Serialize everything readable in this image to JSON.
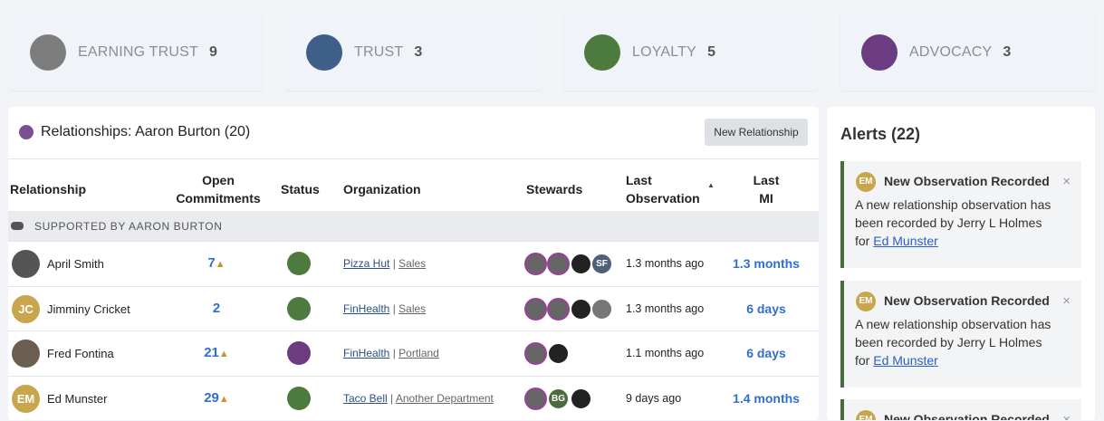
{
  "stats": [
    {
      "label": "EARNING TRUST",
      "count": 9
    },
    {
      "label": "TRUST",
      "count": 3
    },
    {
      "label": "LOYALTY",
      "count": 5
    },
    {
      "label": "ADVOCACY",
      "count": 3
    }
  ],
  "relationships": {
    "title": "Relationships: Aaron Burton (20)",
    "button": "New Relationship",
    "columns": [
      "Relationship",
      "Open Commitments",
      "Status",
      "Organization",
      "Stewards",
      "Last Observation",
      "Last MI"
    ],
    "group": "SUPPORTED BY AARON BURTON",
    "rows": [
      {
        "name": "April Smith",
        "commitments": 7,
        "organization": "Pizza Hut",
        "department": "Sales",
        "steward_initials": "SF",
        "last_observation": "1.3 months ago",
        "last_mi": "1.3 months"
      },
      {
        "initials": "JC",
        "name": "Jimminy Cricket",
        "commitments": 2,
        "organization": "FinHealth",
        "department": "Sales",
        "last_observation": "1.3 months ago",
        "last_mi": "6 days"
      },
      {
        "name": "Fred Fontina",
        "commitments": 21,
        "organization": "FinHealth",
        "department": "Portland",
        "last_observation": "1.1 months ago",
        "last_mi": "6 days"
      },
      {
        "initials": "EM",
        "name": "Ed Munster",
        "commitments": 29,
        "organization": "Taco Bell",
        "department": "Another Department",
        "steward_initials": "BG",
        "last_observation": "9 days ago",
        "last_mi": "1.4 months"
      }
    ]
  },
  "alerts": {
    "title": "Alerts (22)",
    "items": [
      {
        "initials": "EM",
        "title": "New Observation Recorded",
        "body": "A new relationship observation has been recorded by Jerry L Holmes for",
        "link": "Ed Munster"
      },
      {
        "initials": "EM",
        "title": "New Observation Recorded",
        "body": "A new relationship observation has been recorded by Jerry L Holmes for",
        "link": "Ed Munster"
      },
      {
        "initials": "EM",
        "title": "New Observation Recorded"
      }
    ]
  }
}
